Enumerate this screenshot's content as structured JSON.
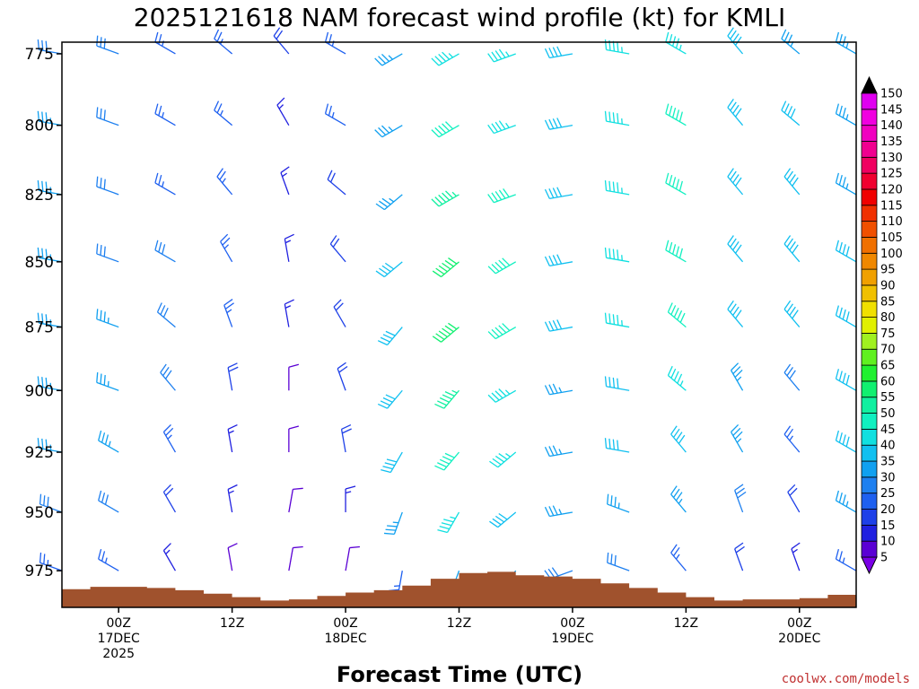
{
  "chart_data": {
    "type": "wind_barb_profile",
    "title": "2025121618 NAM forecast wind profile (kt) for KMLI",
    "xlabel": "Forecast Time (UTC)",
    "ylabel": "",
    "credit": "coolwx.com/models",
    "y_axis": {
      "ticks": [
        775,
        800,
        825,
        850,
        875,
        900,
        925,
        950,
        975
      ],
      "range_hpa": [
        771,
        991
      ],
      "orientation": "pressure, increasing downward"
    },
    "x_axis": {
      "range_hours": [
        -6,
        78
      ],
      "ticks": [
        {
          "hour": 0,
          "lines": [
            "00Z",
            "17DEC",
            "2025"
          ]
        },
        {
          "hour": 12,
          "lines": [
            "12Z"
          ]
        },
        {
          "hour": 24,
          "lines": [
            "00Z",
            "18DEC"
          ]
        },
        {
          "hour": 36,
          "lines": [
            "12Z"
          ]
        },
        {
          "hour": 48,
          "lines": [
            "00Z",
            "19DEC"
          ]
        },
        {
          "hour": 60,
          "lines": [
            "12Z"
          ]
        },
        {
          "hour": 72,
          "lines": [
            "00Z",
            "20DEC"
          ]
        }
      ]
    },
    "surface_pressure": {
      "hours": [
        -6,
        -3,
        0,
        3,
        6,
        9,
        12,
        15,
        18,
        21,
        24,
        27,
        30,
        33,
        36,
        39,
        42,
        45,
        48,
        51,
        54,
        57,
        60,
        63,
        66,
        69,
        72,
        75,
        78
      ],
      "hpa": [
        983,
        982,
        982,
        982.5,
        983.5,
        985,
        986.5,
        988,
        987.5,
        986,
        984.5,
        983.5,
        981.5,
        978.5,
        976,
        975.5,
        977,
        977.5,
        978.5,
        980.5,
        982.5,
        984.5,
        986.5,
        988,
        987.5,
        987.5,
        987,
        985.5,
        985.5
      ]
    },
    "wind_speed_colorbar": {
      "unit": "kt",
      "labels": [
        5,
        10,
        15,
        20,
        25,
        30,
        35,
        40,
        45,
        50,
        55,
        60,
        65,
        70,
        75,
        80,
        85,
        90,
        95,
        100,
        105,
        110,
        115,
        120,
        125,
        130,
        135,
        140,
        145,
        150
      ],
      "colors": [
        "#7a00e6",
        "#5a00d4",
        "#2020e0",
        "#1e40e8",
        "#1e60f0",
        "#1e80f0",
        "#10a0f0",
        "#10c0f0",
        "#10e0e0",
        "#10f0c0",
        "#10f0a0",
        "#10f070",
        "#20f030",
        "#60f020",
        "#a0f020",
        "#e0f000",
        "#f0e000",
        "#f0c000",
        "#f0a000",
        "#f08800",
        "#f07000",
        "#f05000",
        "#f03000",
        "#f00000",
        "#f00030",
        "#f00060",
        "#f00090",
        "#f000c0",
        "#f000e0",
        "#e000f0"
      ]
    },
    "wind_barbs": {
      "levels_hpa": [
        775,
        800,
        825,
        850,
        875,
        900,
        925,
        950,
        975
      ],
      "forecast_hours": [
        -6,
        0,
        6,
        12,
        18,
        24,
        30,
        36,
        42,
        48,
        54,
        60,
        66,
        72,
        78
      ],
      "speed_kt": [
        [
          30,
          30,
          25,
          25,
          20,
          25,
          35,
          45,
          45,
          40,
          45,
          45,
          40,
          35,
          35
        ],
        [
          35,
          30,
          25,
          25,
          15,
          25,
          35,
          50,
          45,
          40,
          45,
          50,
          40,
          40,
          35
        ],
        [
          35,
          30,
          25,
          25,
          15,
          20,
          35,
          55,
          50,
          40,
          45,
          50,
          40,
          40,
          35
        ],
        [
          35,
          30,
          30,
          25,
          15,
          20,
          40,
          60,
          50,
          40,
          45,
          50,
          40,
          40,
          40
        ],
        [
          35,
          35,
          30,
          25,
          15,
          20,
          40,
          60,
          50,
          40,
          45,
          50,
          40,
          40,
          40
        ],
        [
          35,
          35,
          30,
          20,
          10,
          20,
          40,
          55,
          45,
          35,
          40,
          45,
          35,
          30,
          40
        ],
        [
          35,
          35,
          25,
          15,
          10,
          20,
          40,
          50,
          45,
          35,
          40,
          40,
          35,
          25,
          40
        ],
        [
          30,
          30,
          20,
          15,
          10,
          15,
          35,
          45,
          40,
          35,
          35,
          35,
          30,
          20,
          35
        ],
        [
          25,
          25,
          15,
          10,
          10,
          10,
          25,
          35,
          35,
          30,
          30,
          25,
          20,
          15,
          25
        ]
      ],
      "direction_deg": [
        [
          280,
          290,
          300,
          310,
          320,
          300,
          240,
          240,
          250,
          260,
          280,
          300,
          320,
          310,
          300
        ],
        [
          280,
          290,
          300,
          310,
          330,
          300,
          240,
          240,
          250,
          260,
          280,
          300,
          320,
          310,
          300
        ],
        [
          280,
          290,
          300,
          320,
          340,
          310,
          230,
          240,
          250,
          260,
          280,
          300,
          320,
          320,
          300
        ],
        [
          280,
          290,
          300,
          330,
          350,
          320,
          230,
          230,
          240,
          260,
          280,
          300,
          320,
          320,
          300
        ],
        [
          280,
          290,
          310,
          340,
          350,
          330,
          220,
          230,
          240,
          260,
          280,
          310,
          320,
          320,
          300
        ],
        [
          280,
          290,
          320,
          350,
          0,
          340,
          220,
          220,
          240,
          260,
          280,
          310,
          330,
          320,
          300
        ],
        [
          280,
          300,
          330,
          350,
          0,
          350,
          210,
          220,
          230,
          260,
          280,
          320,
          330,
          320,
          300
        ],
        [
          290,
          300,
          330,
          350,
          10,
          0,
          200,
          210,
          230,
          260,
          290,
          320,
          340,
          330,
          300
        ],
        [
          290,
          300,
          330,
          350,
          10,
          10,
          190,
          200,
          220,
          250,
          290,
          320,
          340,
          340,
          300
        ]
      ]
    }
  }
}
